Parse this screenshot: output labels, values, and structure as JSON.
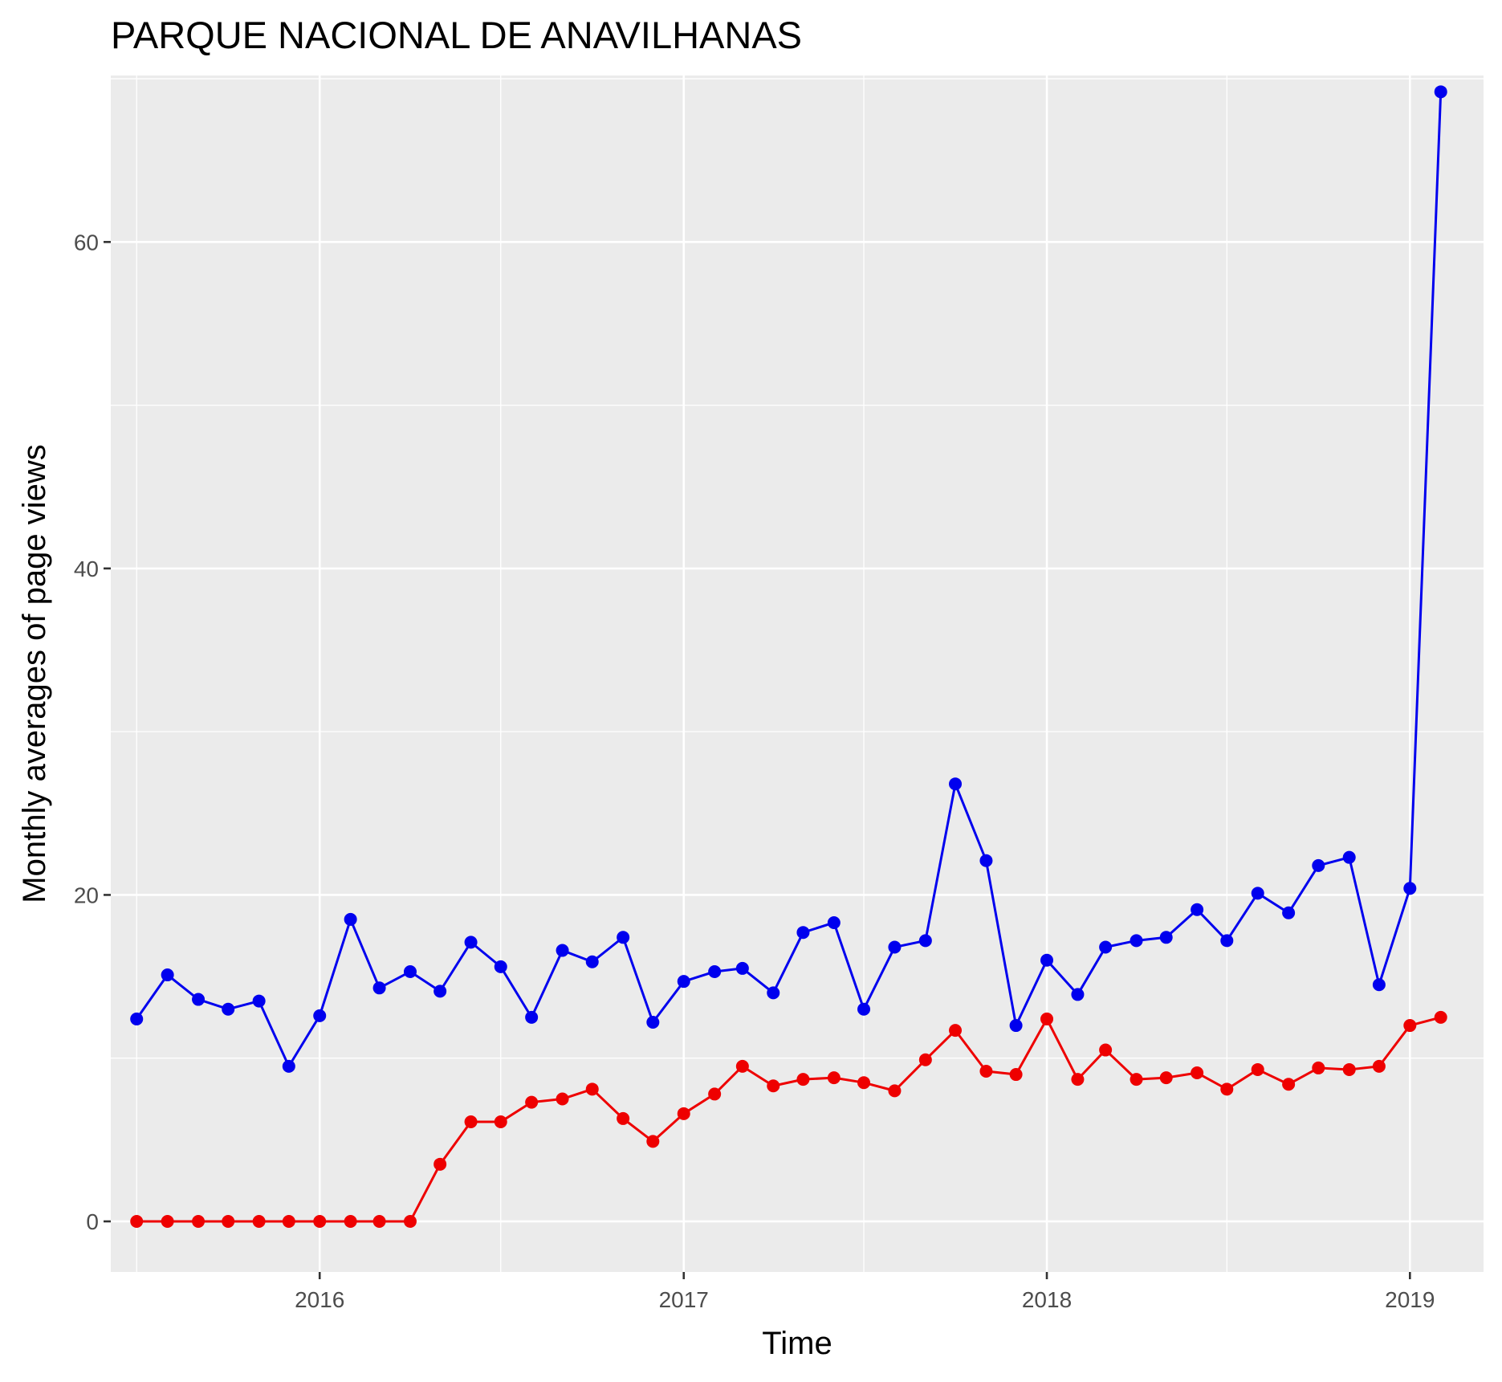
{
  "chart_data": {
    "type": "line",
    "title": "PARQUE NACIONAL DE ANAVILHANAS",
    "xlabel": "Time",
    "ylabel": "Monthly averages of page views",
    "x_ticks": [
      "2016",
      "2017",
      "2018",
      "2019"
    ],
    "y_ticks": [
      0,
      20,
      40,
      60
    ],
    "ylim": [
      -3.1,
      70.2
    ],
    "xlim": [
      "2015-06-05",
      "2019-03-16"
    ],
    "grid": true,
    "legend": "none",
    "background": "#ebebeb",
    "x": [
      "2015-07-01",
      "2015-08-01",
      "2015-09-01",
      "2015-10-01",
      "2015-11-01",
      "2015-12-01",
      "2016-01-01",
      "2016-02-01",
      "2016-03-01",
      "2016-04-01",
      "2016-05-01",
      "2016-06-01",
      "2016-07-01",
      "2016-08-01",
      "2016-09-01",
      "2016-10-01",
      "2016-11-01",
      "2016-12-01",
      "2017-01-01",
      "2017-02-01",
      "2017-03-01",
      "2017-04-01",
      "2017-05-01",
      "2017-06-01",
      "2017-07-01",
      "2017-08-01",
      "2017-09-01",
      "2017-10-01",
      "2017-11-01",
      "2017-12-01",
      "2018-01-01",
      "2018-02-01",
      "2018-03-01",
      "2018-04-01",
      "2018-05-01",
      "2018-06-01",
      "2018-07-01",
      "2018-08-01",
      "2018-09-01",
      "2018-10-01",
      "2018-11-01",
      "2018-12-01",
      "2019-01-01",
      "2019-02-01"
    ],
    "series": [
      {
        "color": "#0000ee",
        "values": [
          12.4,
          15.1,
          13.6,
          13.0,
          13.5,
          9.5,
          12.6,
          18.5,
          14.3,
          15.3,
          14.1,
          17.1,
          15.6,
          12.5,
          16.6,
          15.9,
          17.4,
          12.2,
          14.7,
          15.3,
          15.5,
          14.0,
          17.7,
          18.3,
          13.0,
          16.8,
          17.2,
          26.8,
          22.1,
          12.0,
          16.0,
          13.9,
          16.8,
          17.2,
          17.4,
          19.1,
          17.2,
          20.1,
          18.9,
          21.8,
          22.3,
          14.5,
          20.4,
          69.2
        ]
      },
      {
        "color": "#ee0000",
        "values": [
          0.0,
          0.0,
          0.0,
          0.0,
          0.0,
          0.0,
          0.0,
          0.0,
          0.0,
          0.0,
          3.5,
          6.1,
          6.1,
          7.3,
          7.5,
          8.1,
          6.3,
          4.9,
          6.6,
          7.8,
          9.5,
          8.3,
          8.7,
          8.8,
          8.5,
          8.0,
          9.9,
          11.7,
          9.2,
          9.0,
          12.4,
          8.7,
          10.5,
          8.7,
          8.8,
          9.1,
          8.1,
          9.3,
          8.4,
          9.4,
          9.3,
          9.5,
          12.0,
          12.5
        ]
      }
    ]
  }
}
